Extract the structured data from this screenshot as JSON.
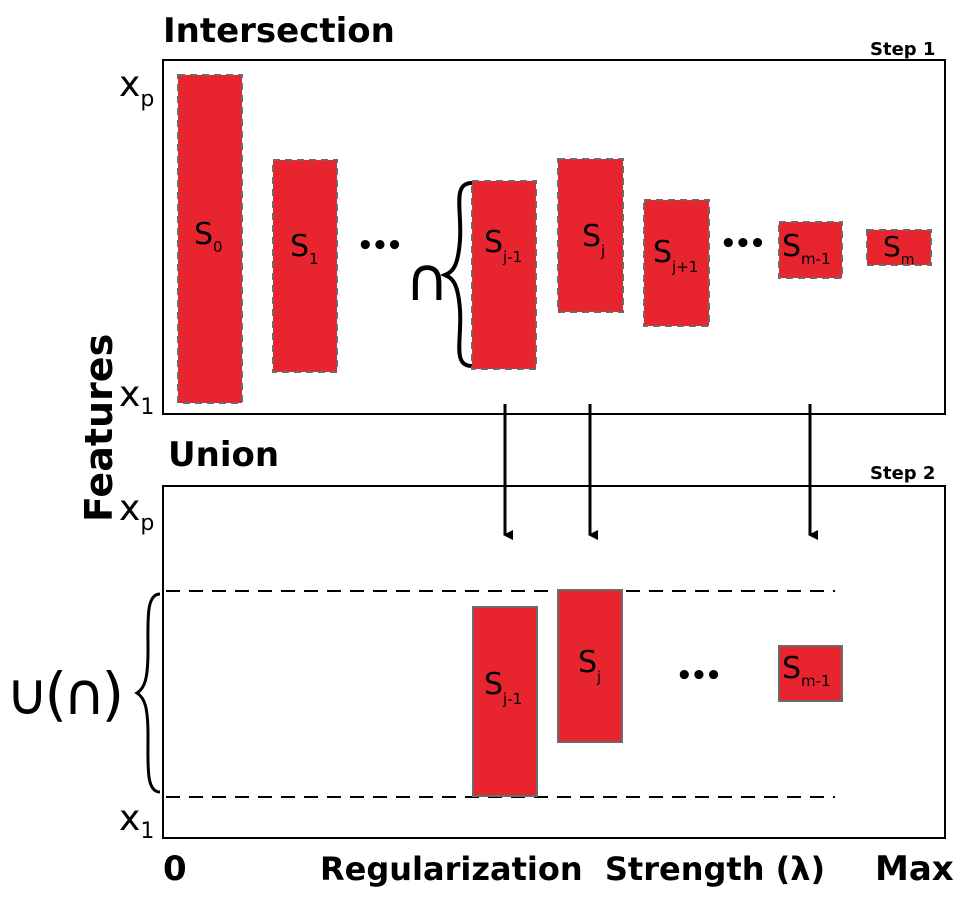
{
  "top_panel": {
    "title": "Intersection",
    "step": "Step 1",
    "y_top": "x",
    "y_top_sub": "p",
    "y_bottom": "x",
    "y_bottom_sub": "1",
    "operator": "∩",
    "ellipsis": "•••",
    "bars": [
      {
        "label": "S",
        "sub": "0"
      },
      {
        "label": "S",
        "sub": "1"
      },
      {
        "label": "S",
        "sub": "j-1"
      },
      {
        "label": "S",
        "sub": "j"
      },
      {
        "label": "S",
        "sub": "j+1"
      },
      {
        "label": "S",
        "sub": "m-1"
      },
      {
        "label": "S",
        "sub": "m"
      }
    ]
  },
  "bottom_panel": {
    "title": "Union",
    "step": "Step 2",
    "y_top": "x",
    "y_top_sub": "p",
    "y_bottom": "x",
    "y_bottom_sub": "1",
    "operator": "∪(∩)",
    "ellipsis": "•••",
    "bars": [
      {
        "label": "S",
        "sub": "j-1"
      },
      {
        "label": "S",
        "sub": "j"
      },
      {
        "label": "S",
        "sub": "m-1"
      }
    ]
  },
  "y_axis_label": "Features",
  "x_axis": {
    "label": "Regularization  Strength (λ)",
    "min_label": "0",
    "max_label": "Max"
  },
  "colors": {
    "bar_fill": "#e8242f",
    "bar_stroke": "#6b6b6b",
    "line": "#000000"
  }
}
